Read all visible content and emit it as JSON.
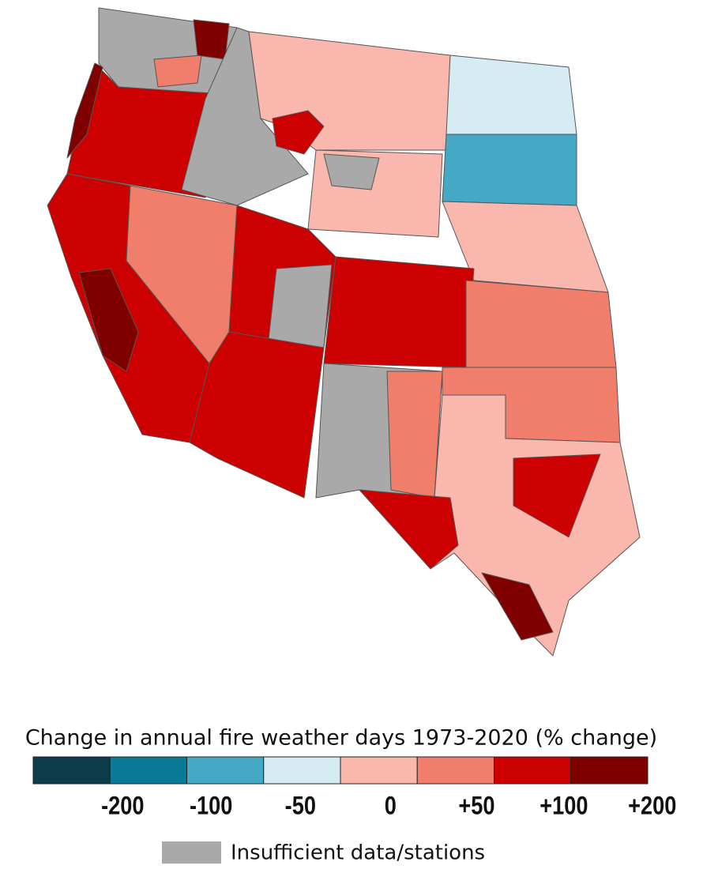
{
  "legend": {
    "title": "Change in annual fire weather days 1973-2020 (% change)",
    "colors": [
      "#0d3b4a",
      "#0b7a96",
      "#45a9c6",
      "#d6ecf3",
      "#f9b7ad",
      "#f07e6b",
      "#cc0000",
      "#800000"
    ],
    "ticks": [
      -200,
      -100,
      -50,
      0,
      {
        "value": 50,
        "label": "+50"
      },
      {
        "value": 100,
        "label": "+100"
      },
      {
        "value": 200,
        "label": "+200"
      }
    ],
    "insufficient": {
      "label": "Insufficient data/stations",
      "color": "#a9a9a9"
    }
  }
}
